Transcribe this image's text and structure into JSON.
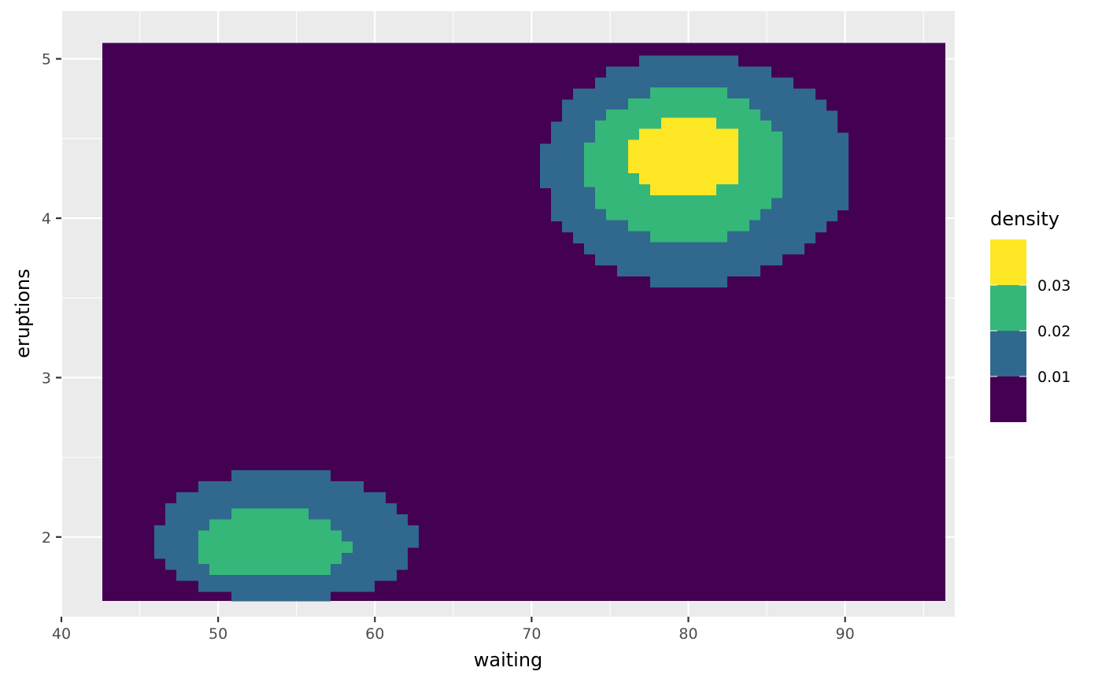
{
  "chart_data": {
    "type": "heatmap",
    "title": "",
    "xlabel": "waiting",
    "ylabel": "eruptions",
    "xlim": [
      40,
      97
    ],
    "ylim": [
      1.5,
      5.3
    ],
    "x_ticks": [
      40,
      50,
      60,
      70,
      80,
      90
    ],
    "y_ticks": [
      2,
      3,
      4,
      5
    ],
    "x_tick_labels": [
      "40",
      "50",
      "60",
      "70",
      "80",
      "90"
    ],
    "y_tick_labels": [
      "2",
      "3",
      "4",
      "5"
    ],
    "grid": true,
    "raster_extent": {
      "x": [
        42.6,
        96.4
      ],
      "y": [
        1.6,
        5.1
      ]
    },
    "legend": {
      "title": "density",
      "position": "right",
      "bins": [
        {
          "color": "#FDE725",
          "range": "> 0.03"
        },
        {
          "color": "#35B779",
          "range": "0.02 - 0.03"
        },
        {
          "color": "#31688E",
          "range": "0.01 - 0.02"
        },
        {
          "color": "#440154",
          "range": "< 0.01"
        }
      ],
      "break_labels": [
        "0.03",
        "0.02",
        "0.01"
      ]
    },
    "density_regions": [
      {
        "level": "0.01",
        "color": "#31688E",
        "center": [
          79.5,
          4.32
        ],
        "x_range": [
          70.7,
          90.5
        ],
        "y_range": [
          3.58,
          5.02
        ]
      },
      {
        "level": "0.02",
        "color": "#35B779",
        "center": [
          79.8,
          4.35
        ],
        "x_range": [
          73.5,
          86.2
        ],
        "y_range": [
          3.85,
          4.82
        ]
      },
      {
        "level": "0.03",
        "color": "#FDE725",
        "center": [
          80.0,
          4.4
        ],
        "x_range": [
          76.3,
          83.5
        ],
        "y_range": [
          4.13,
          4.63
        ]
      },
      {
        "level": "0.01",
        "color": "#31688E",
        "center": [
          54.0,
          1.98
        ],
        "x_range": [
          46.0,
          62.6
        ],
        "y_range": [
          1.6,
          2.42
        ]
      },
      {
        "level": "0.02",
        "color": "#35B779",
        "center": [
          53.0,
          1.95
        ],
        "x_range": [
          48.4,
          58.3
        ],
        "y_range": [
          1.73,
          2.18
        ]
      }
    ]
  }
}
